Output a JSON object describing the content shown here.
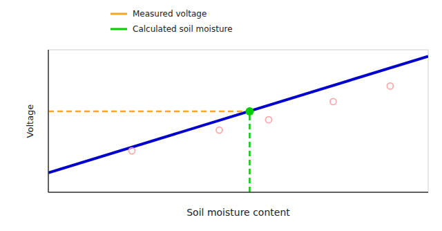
{
  "chart_data": {
    "type": "scatter",
    "xlabel": "Soil moisture content",
    "ylabel": "Voltage",
    "xlim": [
      0,
      10
    ],
    "ylim": [
      0,
      11
    ],
    "tick_labels": false,
    "grid": false,
    "legend": "top",
    "series": [
      {
        "type": "line",
        "color": "#0000cc",
        "line_style": "solid",
        "x": [
          0,
          10
        ],
        "values": [
          1.5,
          10.5
        ]
      },
      {
        "type": "scatter",
        "color": "#ffaaaa",
        "marker": "open-circle",
        "x": [
          2.2,
          4.5,
          5.8,
          7.5,
          9.0
        ],
        "values": [
          3.2,
          4.8,
          5.6,
          7.0,
          8.2
        ]
      },
      {
        "name": "Measured voltage",
        "type": "line",
        "line_style": "dashed",
        "color": "#f5a623",
        "x": [
          0,
          5.3
        ],
        "values": [
          6.25,
          6.25
        ]
      },
      {
        "name": "Calculated soil moisture",
        "type": "line",
        "line_style": "dashed",
        "color": "#00cc00",
        "x": [
          5.3,
          5.3
        ],
        "values": [
          0,
          6.25
        ]
      },
      {
        "type": "scatter",
        "color": "#00cc00",
        "marker": "circle",
        "x": [
          5.3
        ],
        "values": [
          6.25
        ]
      }
    ]
  }
}
